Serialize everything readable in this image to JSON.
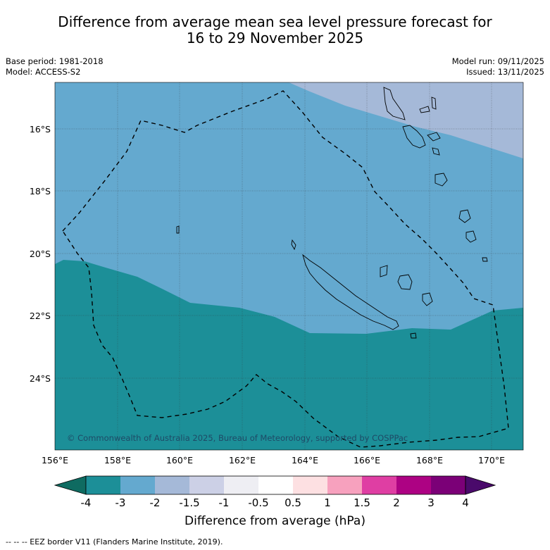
{
  "title_line1": "Difference from average mean sea level pressure forecast for",
  "title_line2": "16 to 29 November 2025",
  "meta": {
    "base_period": "Base period: 1981-2018",
    "model": "Model: ACCESS-S2",
    "model_run": "Model run: 09/11/2025",
    "issued": "Issued: 13/11/2025"
  },
  "map": {
    "lat_labels": [
      "16°S",
      "18°S",
      "20°S",
      "22°S",
      "24°S"
    ],
    "lon_labels": [
      "156°E",
      "158°E",
      "160°E",
      "162°E",
      "164°E",
      "166°E",
      "168°E",
      "170°E"
    ],
    "copyright": "© Commonwealth of Australia 2025, Bureau of Meteorology, supported by COSPPac",
    "fill_colors": {
      "bin_minus4_minus3": "#1c8f98",
      "bin_minus3_minus2": "#64a9cf",
      "bin_minus2_minus15": "#a5b9d8"
    }
  },
  "colorbar": {
    "title": "Difference from average (hPa)",
    "ticks": [
      "-4",
      "-3",
      "-2",
      "-1.5",
      "-1",
      "-0.5",
      "0.5",
      "1",
      "1.5",
      "2",
      "3",
      "4"
    ],
    "colors": [
      "#1c8f98",
      "#64a9cf",
      "#a5b9d8",
      "#ccd0e6",
      "#eeeef3",
      "#ffffff",
      "#fde0e2",
      "#f7a1be",
      "#df3ea3",
      "#ad0283",
      "#7b0077"
    ],
    "under_color": "#0f6b61",
    "over_color": "#4a0a6b"
  },
  "footnote": "-- -- -- EEZ border V11 (Flanders Marine Institute, 2019)."
}
